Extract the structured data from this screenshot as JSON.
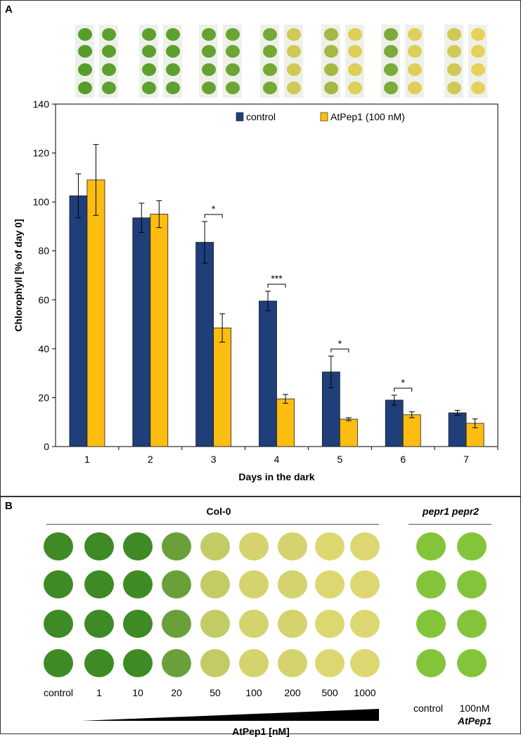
{
  "panel_a": {
    "label": "A"
  },
  "panel_b": {
    "label": "B",
    "col0_label": "Col-0",
    "mutant_label": "pepr1 pepr2",
    "col0_concentrations": [
      "control",
      "1",
      "10",
      "20",
      "50",
      "100",
      "200",
      "500",
      "1000"
    ],
    "mutant_conditions": [
      "control",
      "100nM"
    ],
    "mutant_treatment_label": "AtPep1",
    "gradient_label": "AtPep1 [nM]"
  },
  "chart_data": {
    "type": "bar",
    "categories": [
      "1",
      "2",
      "3",
      "4",
      "5",
      "6",
      "7"
    ],
    "xlabel": "Days  in the dark",
    "ylabel": "Chlorophyll [% of day 0]",
    "ylim": [
      0,
      140
    ],
    "yticks": [
      "0",
      "20",
      "40",
      "60",
      "80",
      "100",
      "120",
      "140"
    ],
    "grid": false,
    "legend_position": "top-right",
    "series": [
      {
        "name": "control",
        "color": "#1f3f7a",
        "values": [
          102.5,
          93.5,
          83.5,
          59.5,
          30.5,
          19.0,
          13.8
        ],
        "errors": [
          9.0,
          6.0,
          8.5,
          4.0,
          6.5,
          2.0,
          1.0
        ]
      },
      {
        "name": "AtPep1 (100 nM)",
        "color": "#fdbd10",
        "values": [
          109.0,
          95.0,
          48.5,
          19.5,
          11.2,
          13.0,
          9.5
        ],
        "errors": [
          14.5,
          5.5,
          5.8,
          1.8,
          0.6,
          1.2,
          1.8
        ]
      }
    ],
    "significance": [
      {
        "category": "3",
        "label": "*"
      },
      {
        "category": "4",
        "label": "***"
      },
      {
        "category": "5",
        "label": "*"
      },
      {
        "category": "6",
        "label": "*"
      }
    ]
  },
  "colors": {
    "leaf_green": "#4f9a2a",
    "leaf_yellow": "#e6d25a"
  }
}
